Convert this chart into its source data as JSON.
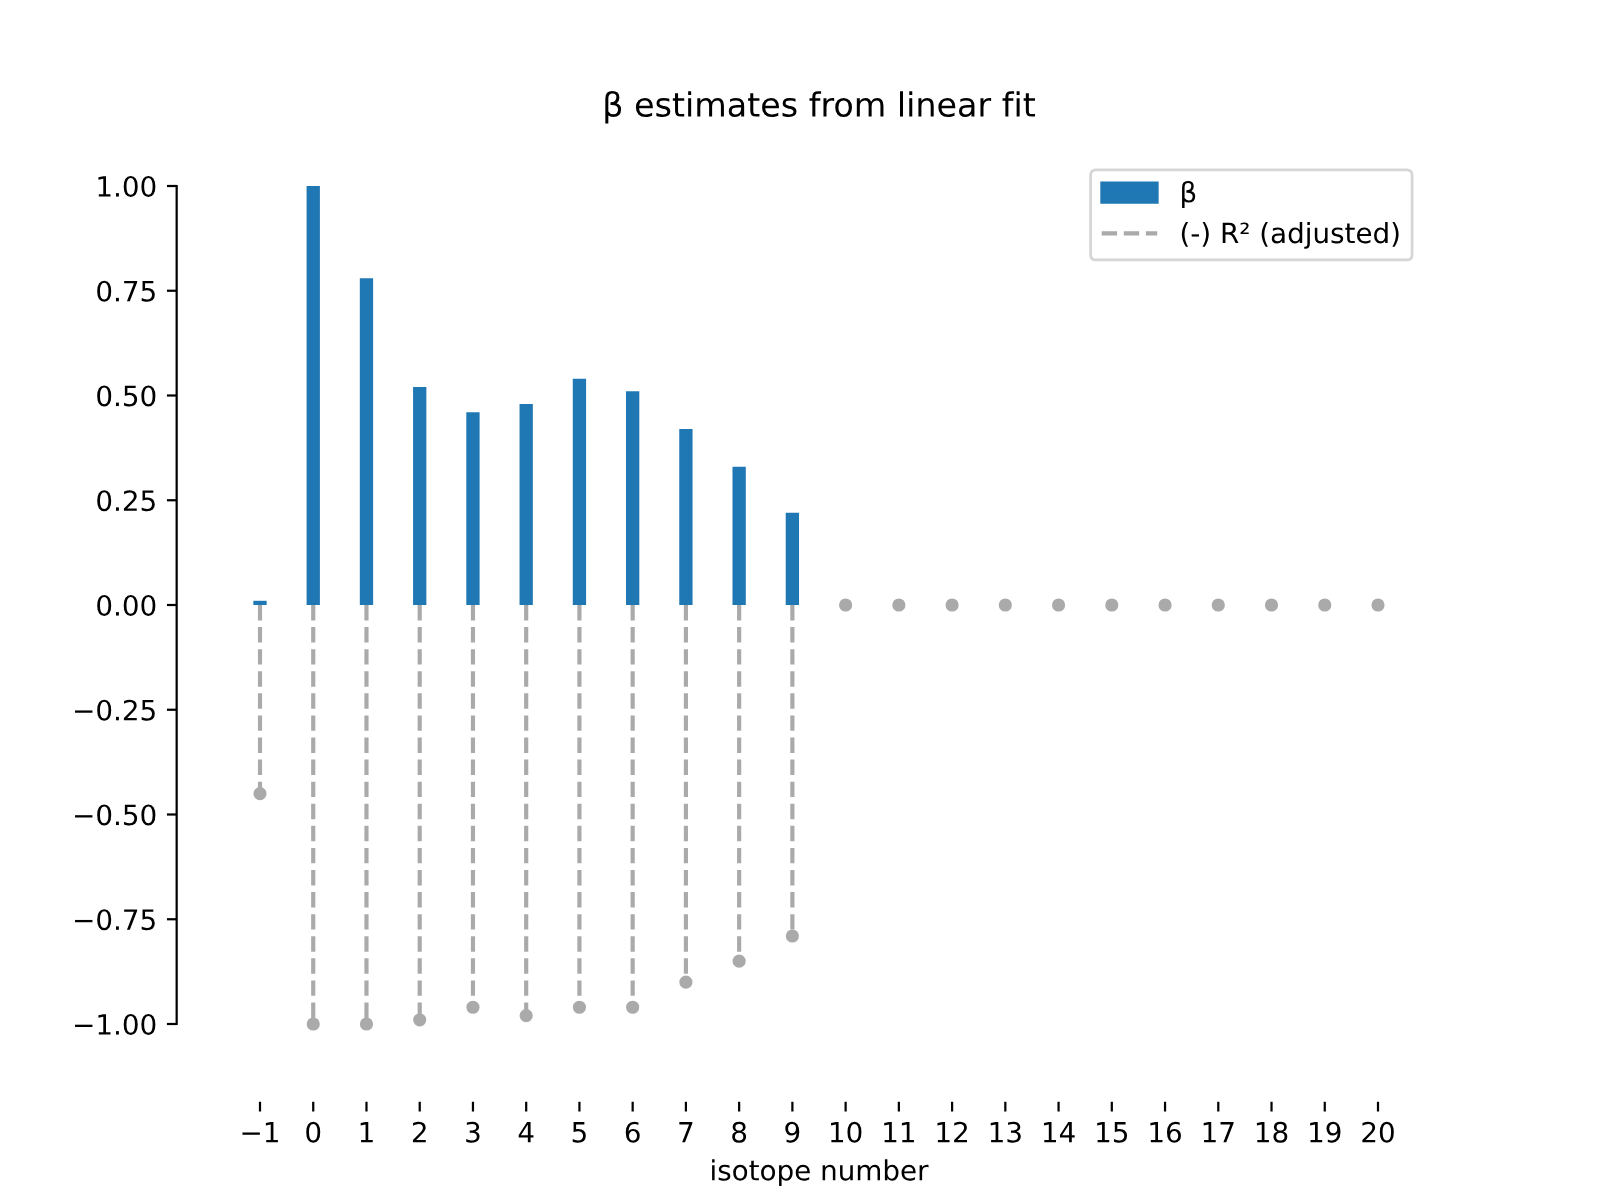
{
  "chart_data": {
    "type": "bar",
    "title": "β estimates from linear fit",
    "xlabel": "isotope number",
    "xlim": [
      -1,
      20
    ],
    "ylim": [
      -1,
      1
    ],
    "xticks": [
      {
        "value": -1,
        "label": "−1"
      },
      0,
      1,
      2,
      3,
      4,
      5,
      6,
      7,
      8,
      9,
      10,
      11,
      12,
      13,
      14,
      15,
      16,
      17,
      18,
      19,
      20
    ],
    "yticks": [
      {
        "value": -1,
        "label": "−1.00"
      },
      {
        "value": -0.75,
        "label": "−0.75"
      },
      {
        "value": -0.5,
        "label": "−0.50"
      },
      {
        "value": -0.25,
        "label": "−0.25"
      },
      {
        "value": 0,
        "label": "0.00"
      },
      {
        "value": 0.25,
        "label": "0.25"
      },
      {
        "value": 0.5,
        "label": "0.50"
      },
      {
        "value": 0.75,
        "label": "0.75"
      },
      {
        "value": 1,
        "label": "1.00"
      }
    ],
    "legend": "top right",
    "series": [
      {
        "name": "β",
        "color": "#1f77b4",
        "x": [
          -1,
          0,
          1,
          2,
          3,
          4,
          5,
          6,
          7,
          8,
          9
        ],
        "values": [
          0.01,
          1.0,
          0.78,
          0.52,
          0.46,
          0.48,
          0.54,
          0.51,
          0.42,
          0.33,
          0.22
        ]
      },
      {
        "type": "lollipop",
        "name": "(-) R² (adjusted)",
        "color": "#aaaaaa",
        "line_style": "dashed",
        "marker": "circle",
        "x": [
          -1,
          0,
          1,
          2,
          3,
          4,
          5,
          6,
          7,
          8,
          9,
          10,
          11,
          12,
          13,
          14,
          15,
          16,
          17,
          18,
          19,
          20
        ],
        "values": [
          -0.45,
          -1.0,
          -1.0,
          -0.99,
          -0.96,
          -0.98,
          -0.96,
          -0.96,
          -0.9,
          -0.85,
          -0.79,
          0,
          0,
          0,
          0,
          0,
          0,
          0,
          0,
          0,
          0,
          0
        ]
      }
    ]
  }
}
